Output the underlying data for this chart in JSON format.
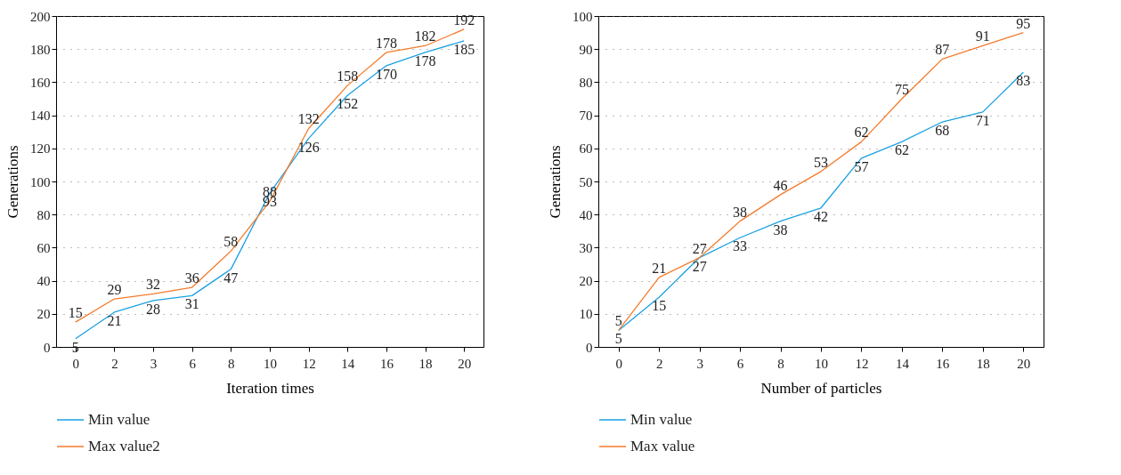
{
  "chart_data": [
    {
      "type": "line",
      "xlabel": "Iteration times",
      "ylabel": "Generations",
      "categories": [
        "0",
        "2",
        "3",
        "6",
        "8",
        "10",
        "12",
        "14",
        "16",
        "18",
        "20"
      ],
      "series": [
        {
          "name": "Min value",
          "color": "#1ba1e2",
          "values": [
            5,
            21,
            28,
            31,
            47,
            93,
            126,
            152,
            170,
            178,
            185
          ]
        },
        {
          "name": "Max value2",
          "color": "#f47b2b",
          "values": [
            15,
            29,
            32,
            36,
            58,
            88,
            132,
            158,
            178,
            182,
            192
          ]
        }
      ],
      "ylim": [
        0,
        200
      ],
      "yticks": [
        0,
        20,
        40,
        60,
        80,
        100,
        120,
        140,
        160,
        180,
        200
      ],
      "grid": "y",
      "legend": "bottom",
      "data_labels": true,
      "line_style": "solid"
    },
    {
      "type": "line",
      "xlabel": "Number of particles",
      "ylabel": "Generations",
      "categories": [
        "0",
        "2",
        "3",
        "6",
        "8",
        "10",
        "12",
        "14",
        "16",
        "18",
        "20"
      ],
      "series": [
        {
          "name": "Min value",
          "color": "#1ba1e2",
          "values": [
            5,
            15,
            27,
            33,
            38,
            42,
            57,
            62,
            68,
            71,
            83
          ]
        },
        {
          "name": "Max value",
          "color": "#f47b2b",
          "values": [
            5,
            21,
            27,
            38,
            46,
            53,
            62,
            75,
            87,
            91,
            95
          ]
        }
      ],
      "ylim": [
        0,
        100
      ],
      "yticks": [
        0,
        10,
        20,
        30,
        40,
        50,
        60,
        70,
        80,
        90,
        100
      ],
      "grid": "y",
      "legend": "bottom",
      "data_labels": true,
      "line_style": "solid"
    }
  ]
}
